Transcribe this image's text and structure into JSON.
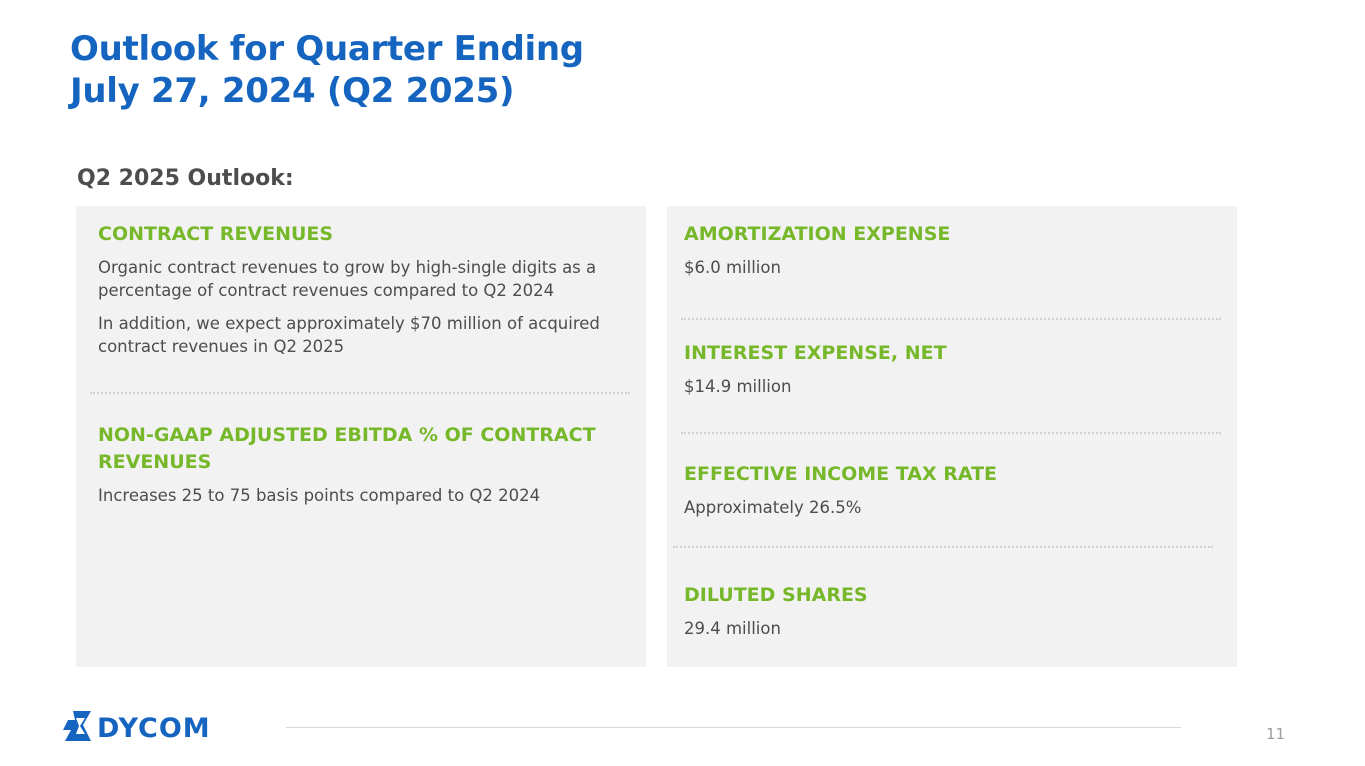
{
  "title": {
    "line1": "Outlook for Quarter Ending",
    "line2": "July 27, 2024 (Q2 2025)"
  },
  "subheading": "Q2 2025 Outlook:",
  "left_panel": {
    "contract_revenues": {
      "label": "CONTRACT REVENUES",
      "text1": "Organic contract revenues to grow by high-single digits as a percentage of contract revenues compared to Q2 2024",
      "text2": "In addition, we expect approximately $70 million of acquired contract revenues in Q2 2025"
    },
    "ebitda": {
      "label": "NON-GAAP ADJUSTED EBITDA % OF CONTRACT REVENUES",
      "text": "Increases 25 to 75 basis points compared to Q2 2024"
    }
  },
  "right_panel": {
    "amortization": {
      "label": "AMORTIZATION EXPENSE",
      "value": "$6.0 million"
    },
    "interest": {
      "label": "INTEREST EXPENSE, NET",
      "value": "$14.9 million"
    },
    "tax_rate": {
      "label": "EFFECTIVE INCOME TAX RATE",
      "value": "Approximately 26.5%"
    },
    "diluted_shares": {
      "label": "DILUTED SHARES",
      "value": "29.4 million"
    }
  },
  "footer": {
    "logo_text": "DYCOM",
    "page_number": "11"
  },
  "colors": {
    "title_blue": "#1565c0",
    "label_green": "#76b82a",
    "panel_gray": "#f2f2f2",
    "body_text": "#4d4d4d"
  }
}
